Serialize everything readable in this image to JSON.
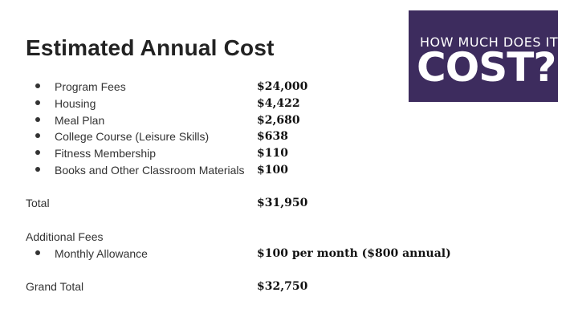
{
  "slide": {
    "title": "Estimated Annual Cost",
    "badge": {
      "line1": "HOW MUCH DOES IT",
      "line2": "COST?",
      "background": "#3d2c5e"
    },
    "items": [
      {
        "label": "Program Fees",
        "value": "$24,000"
      },
      {
        "label": "Housing",
        "value": "$4,422"
      },
      {
        "label": "Meal Plan",
        "value": "$2,680"
      },
      {
        "label": "College Course (Leisure Skills)",
        "value": "$638"
      },
      {
        "label": "Fitness Membership",
        "value": "$110"
      },
      {
        "label": "Books and Other Classroom Materials",
        "value": "$100"
      }
    ],
    "total": {
      "label": "Total",
      "value": "$31,950"
    },
    "additional": {
      "heading": "Additional Fees",
      "items": [
        {
          "label": "Monthly Allowance",
          "value": "$100 per month ($800 annual)"
        }
      ]
    },
    "grand_total": {
      "label": "Grand Total",
      "value": "$32,750"
    }
  }
}
